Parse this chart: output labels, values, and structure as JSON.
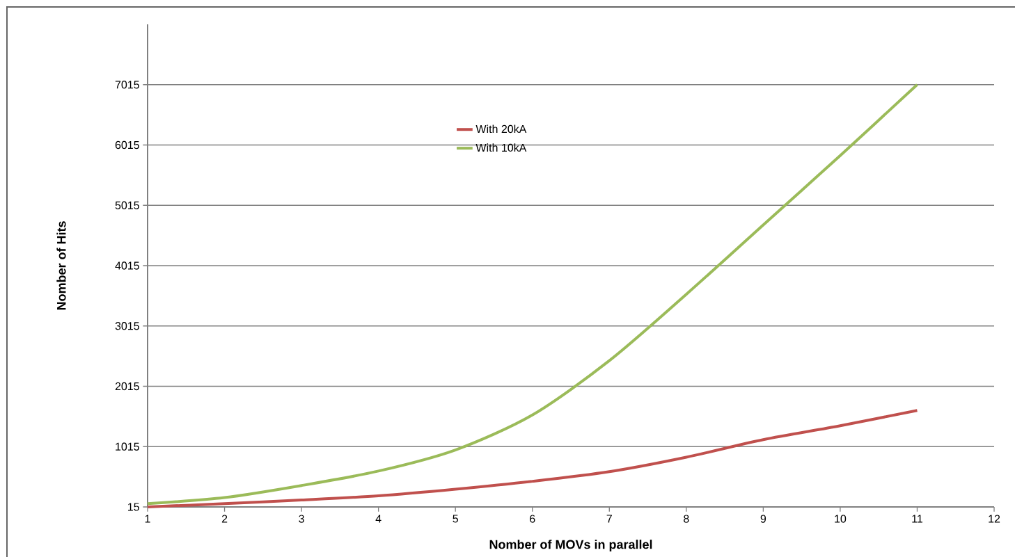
{
  "chart_data": {
    "type": "line",
    "xlabel": "Nomber of MOVs in parallel",
    "ylabel": "Nomber of Hits",
    "x": [
      1,
      2,
      3,
      4,
      5,
      6,
      7,
      8,
      9,
      10,
      11
    ],
    "series": [
      {
        "name": "With 20kA",
        "color": "#c0504d",
        "values": [
          15,
          70,
          130,
          200,
          310,
          440,
          600,
          840,
          1130,
          1360,
          1615
        ]
      },
      {
        "name": "With 10kA",
        "color": "#9bbb59",
        "values": [
          70,
          170,
          370,
          610,
          960,
          1540,
          2440,
          3540,
          4690,
          5840,
          7015
        ]
      }
    ],
    "xlim": [
      1,
      12
    ],
    "xticks": [
      1,
      2,
      3,
      4,
      5,
      6,
      7,
      8,
      9,
      10,
      11,
      12
    ],
    "ylim": [
      15,
      8015
    ],
    "yticks": [
      15,
      1015,
      2015,
      3015,
      4015,
      5015,
      6015,
      7015
    ],
    "grid": "y",
    "legend": "top left",
    "marker": "none",
    "line_style": "solid"
  }
}
